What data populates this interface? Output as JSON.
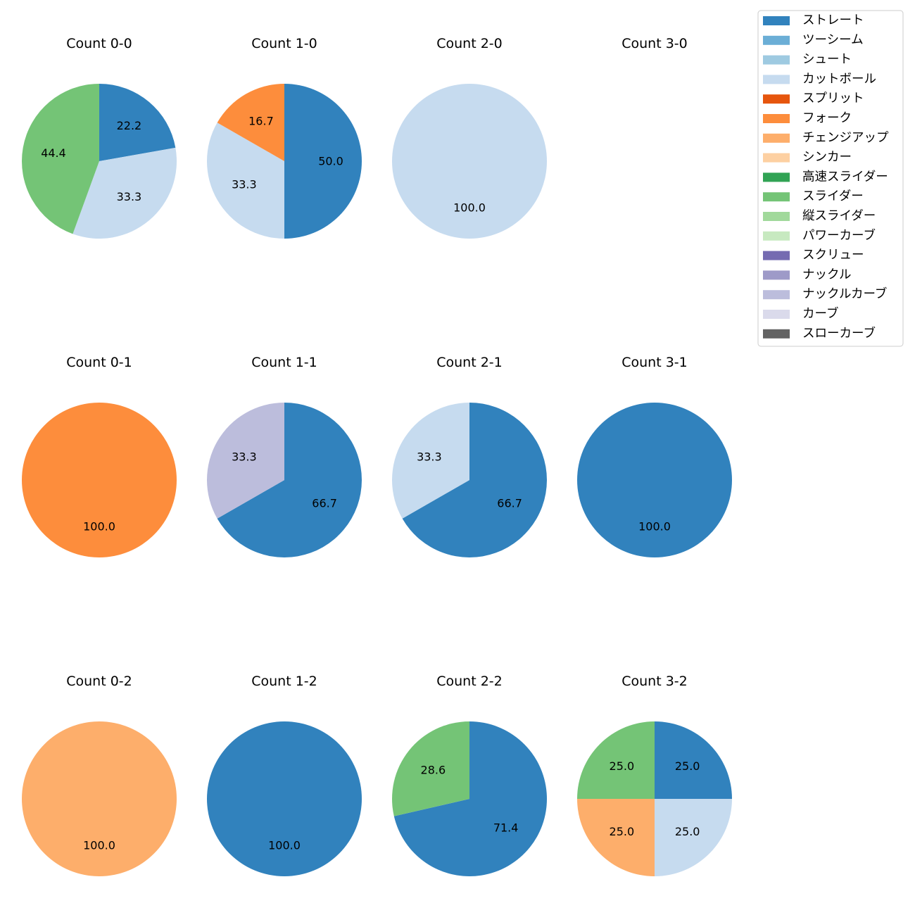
{
  "chart_data": {
    "type": "pie",
    "legend": {
      "placement": "top-right",
      "entries": [
        {
          "label": "ストレート",
          "color": "#3182bd"
        },
        {
          "label": "ツーシーム",
          "color": "#6baed6"
        },
        {
          "label": "シュート",
          "color": "#9ecae1"
        },
        {
          "label": "カットボール",
          "color": "#c6dbef"
        },
        {
          "label": "スプリット",
          "color": "#e6550d"
        },
        {
          "label": "フォーク",
          "color": "#fd8d3c"
        },
        {
          "label": "チェンジアップ",
          "color": "#fdae6b"
        },
        {
          "label": "シンカー",
          "color": "#fdd0a2"
        },
        {
          "label": "高速スライダー",
          "color": "#31a354"
        },
        {
          "label": "スライダー",
          "color": "#74c476"
        },
        {
          "label": "縦スライダー",
          "color": "#a1d99b"
        },
        {
          "label": "パワーカーブ",
          "color": "#c7e9c0"
        },
        {
          "label": "スクリュー",
          "color": "#756bb1"
        },
        {
          "label": "ナックル",
          "color": "#9e9ac8"
        },
        {
          "label": "ナックルカーブ",
          "color": "#bcbddc"
        },
        {
          "label": "カーブ",
          "color": "#dadaeb"
        },
        {
          "label": "スローカーブ",
          "color": "#636363"
        }
      ]
    },
    "pies": [
      {
        "title": "Count 0-0",
        "slices": [
          {
            "label": "ストレート",
            "value": 22.2,
            "text": "22.2"
          },
          {
            "label": "カットボール",
            "value": 33.3,
            "text": "33.3"
          },
          {
            "label": "スライダー",
            "value": 44.4,
            "text": "44.4"
          }
        ]
      },
      {
        "title": "Count 1-0",
        "slices": [
          {
            "label": "ストレート",
            "value": 50.0,
            "text": "50.0"
          },
          {
            "label": "カットボール",
            "value": 33.3,
            "text": "33.3"
          },
          {
            "label": "フォーク",
            "value": 16.7,
            "text": "16.7"
          }
        ]
      },
      {
        "title": "Count 2-0",
        "slices": [
          {
            "label": "カットボール",
            "value": 100.0,
            "text": "100.0"
          }
        ]
      },
      {
        "title": "Count 3-0",
        "slices": []
      },
      {
        "title": "Count 0-1",
        "slices": [
          {
            "label": "フォーク",
            "value": 100.0,
            "text": "100.0"
          }
        ]
      },
      {
        "title": "Count 1-1",
        "slices": [
          {
            "label": "ストレート",
            "value": 66.7,
            "text": "66.7"
          },
          {
            "label": "ナックルカーブ",
            "value": 33.3,
            "text": "33.3"
          }
        ]
      },
      {
        "title": "Count 2-1",
        "slices": [
          {
            "label": "ストレート",
            "value": 66.7,
            "text": "66.7"
          },
          {
            "label": "カットボール",
            "value": 33.3,
            "text": "33.3"
          }
        ]
      },
      {
        "title": "Count 3-1",
        "slices": [
          {
            "label": "ストレート",
            "value": 100.0,
            "text": "100.0"
          }
        ]
      },
      {
        "title": "Count 0-2",
        "slices": [
          {
            "label": "チェンジアップ",
            "value": 100.0,
            "text": "100.0"
          }
        ]
      },
      {
        "title": "Count 1-2",
        "slices": [
          {
            "label": "ストレート",
            "value": 100.0,
            "text": "100.0"
          }
        ]
      },
      {
        "title": "Count 2-2",
        "slices": [
          {
            "label": "ストレート",
            "value": 71.4,
            "text": "71.4"
          },
          {
            "label": "スライダー",
            "value": 28.6,
            "text": "28.6"
          }
        ]
      },
      {
        "title": "Count 3-2",
        "slices": [
          {
            "label": "ストレート",
            "value": 25.0,
            "text": "25.0"
          },
          {
            "label": "カットボール",
            "value": 25.0,
            "text": "25.0"
          },
          {
            "label": "チェンジアップ",
            "value": 25.0,
            "text": "25.0"
          },
          {
            "label": "スライダー",
            "value": 25.0,
            "text": "25.0"
          }
        ]
      }
    ]
  }
}
